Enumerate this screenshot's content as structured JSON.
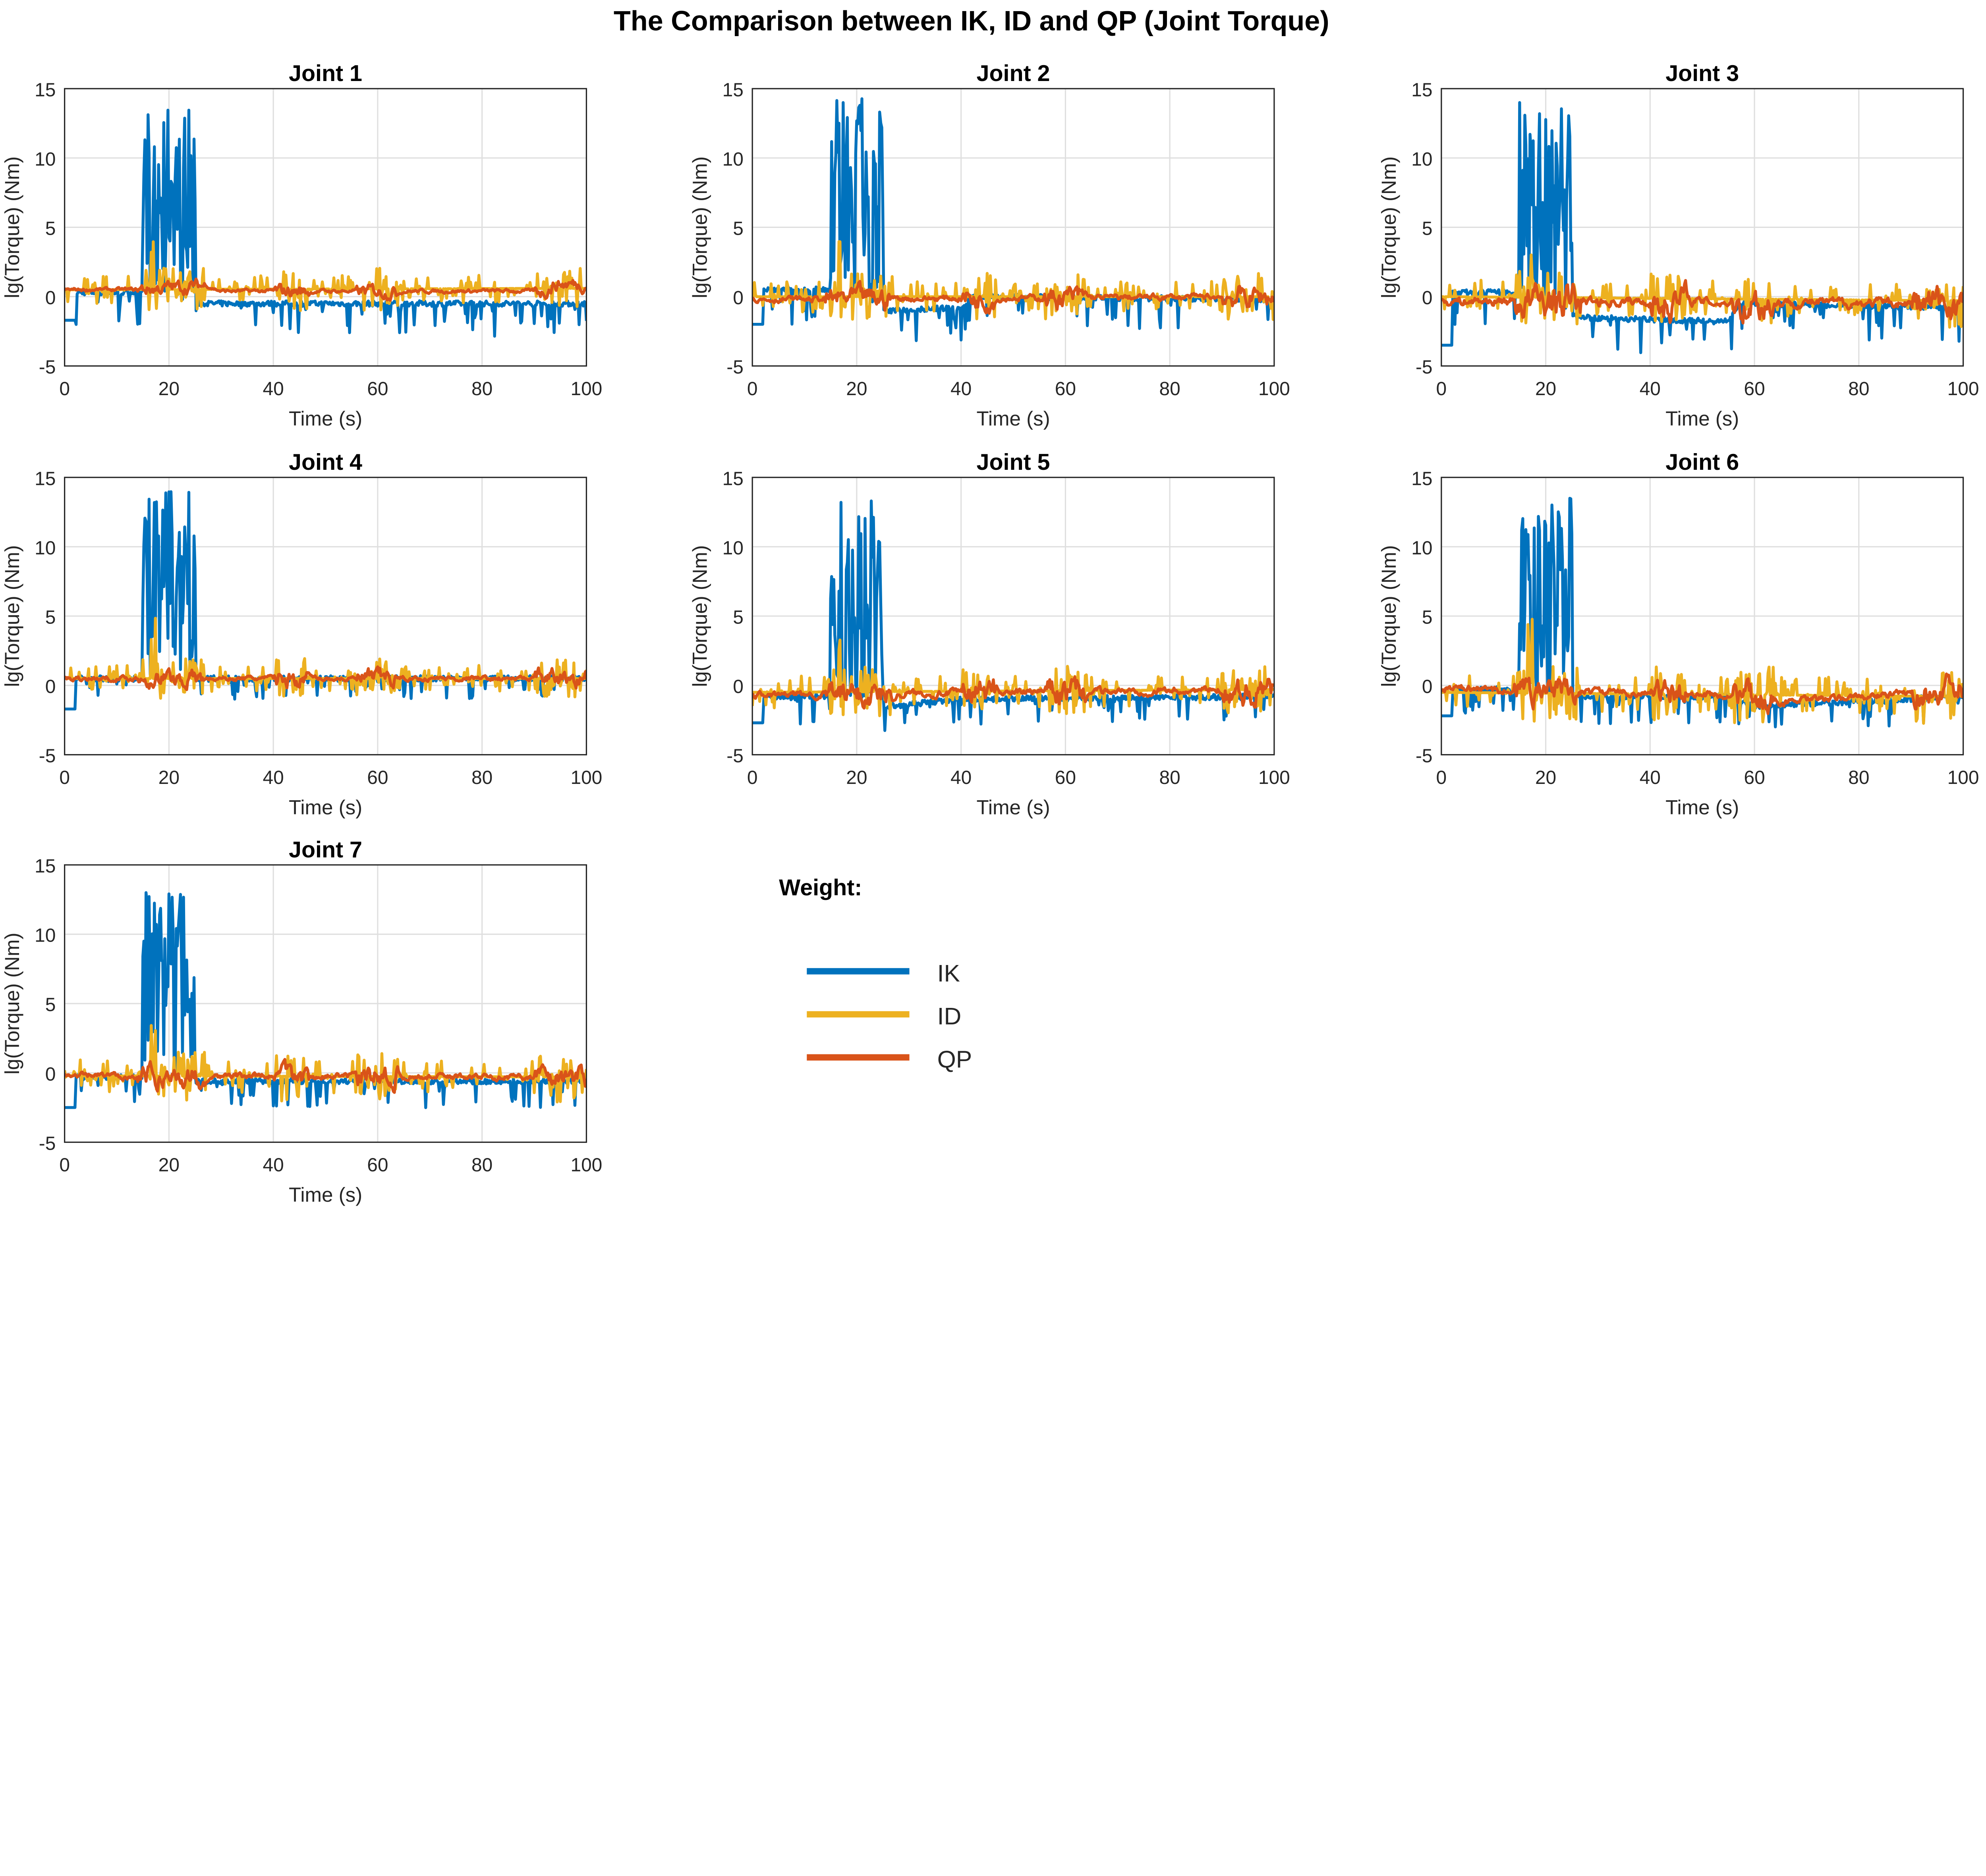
{
  "title": "The Comparison between IK, ID and QP (Joint Torque)",
  "legend": {
    "heading": "Weight:",
    "entries": [
      {
        "label": "IK",
        "color": "#0072BD"
      },
      {
        "label": "ID",
        "color": "#EDB120"
      },
      {
        "label": "QP",
        "color": "#D95319"
      }
    ]
  },
  "chart_data": [
    {
      "type": "line",
      "title": "Joint 1",
      "xlabel": "Time (s)",
      "ylabel": "lg(Torque) (Nm)",
      "xlim": [
        0,
        100
      ],
      "ylim": [
        -5,
        15
      ],
      "xticks": [
        0,
        20,
        40,
        60,
        80,
        100
      ],
      "yticks": [
        -5,
        0,
        5,
        10,
        15
      ],
      "grid": true,
      "series": [
        {
          "name": "IK",
          "levels": [
            [
              0,
              -1.7
            ],
            [
              2,
              -1.7
            ],
            [
              2.1,
              0.3
            ],
            [
              15,
              0.3
            ],
            [
              26,
              -0.5
            ],
            [
              100,
              -0.5
            ]
          ],
          "spike_max": 14.1,
          "dip": 2.5
        },
        {
          "name": "ID",
          "levels": [
            [
              0,
              0.5
            ],
            [
              100,
              0.6
            ]
          ],
          "noise": 1.3,
          "spike_max": 7
        },
        {
          "name": "QP",
          "levels": [
            [
              0,
              0.5
            ],
            [
              14,
              0.5
            ],
            [
              27,
              0.8
            ],
            [
              30,
              0.4
            ],
            [
              92,
              0.4
            ],
            [
              94,
              0.9
            ],
            [
              100,
              0.9
            ]
          ],
          "noise": 0.3
        }
      ]
    },
    {
      "type": "line",
      "title": "Joint 2",
      "xlabel": "Time (s)",
      "ylabel": "lg(Torque) (Nm)",
      "xlim": [
        0,
        100
      ],
      "ylim": [
        -5,
        15
      ],
      "xticks": [
        0,
        20,
        40,
        60,
        80,
        100
      ],
      "yticks": [
        -5,
        0,
        5,
        10,
        15
      ],
      "grid": true,
      "series": [
        {
          "name": "IK",
          "levels": [
            [
              0,
              -2
            ],
            [
              2,
              -2
            ],
            [
              2.1,
              0.5
            ],
            [
              15,
              0.5
            ],
            [
              26,
              -1
            ],
            [
              40,
              -0.8
            ],
            [
              42,
              0
            ],
            [
              100,
              -0.2
            ]
          ],
          "spike_max": 14.4,
          "dip": 2.5
        },
        {
          "name": "ID",
          "levels": [
            [
              0,
              0
            ],
            [
              100,
              0
            ]
          ],
          "noise": 1.4,
          "spike_max": 5
        },
        {
          "name": "QP",
          "levels": [
            [
              0,
              -0.2
            ],
            [
              100,
              0
            ]
          ],
          "noise": 0.5
        }
      ]
    },
    {
      "type": "line",
      "title": "Joint 3",
      "xlabel": "Time (s)",
      "ylabel": "lg(Torque) (Nm)",
      "xlim": [
        0,
        100
      ],
      "ylim": [
        -5,
        15
      ],
      "xticks": [
        0,
        20,
        40,
        60,
        80,
        100
      ],
      "yticks": [
        -5,
        0,
        5,
        10,
        15
      ],
      "grid": true,
      "series": [
        {
          "name": "IK",
          "levels": [
            [
              0,
              -3.5
            ],
            [
              2,
              -3.5
            ],
            [
              2.1,
              0.3
            ],
            [
              15,
              0.3
            ],
            [
              26,
              -1.5
            ],
            [
              55,
              -1.8
            ],
            [
              57,
              -0.5
            ],
            [
              100,
              -0.8
            ]
          ],
          "spike_max": 14,
          "dip": 2.5
        },
        {
          "name": "ID",
          "levels": [
            [
              0,
              0
            ],
            [
              100,
              -0.3
            ]
          ],
          "noise": 1.6,
          "spike_max": 5
        },
        {
          "name": "QP",
          "levels": [
            [
              0,
              -0.3
            ],
            [
              100,
              -0.5
            ]
          ],
          "noise": 0.8
        }
      ]
    },
    {
      "type": "line",
      "title": "Joint 4",
      "xlabel": "Time (s)",
      "ylabel": "lg(Torque) (Nm)",
      "xlim": [
        0,
        100
      ],
      "ylim": [
        -5,
        15
      ],
      "xticks": [
        0,
        20,
        40,
        60,
        80,
        100
      ],
      "yticks": [
        -5,
        0,
        5,
        10,
        15
      ],
      "grid": true,
      "series": [
        {
          "name": "IK",
          "levels": [
            [
              0,
              -1.7
            ],
            [
              2,
              -1.7
            ],
            [
              2.1,
              0.5
            ],
            [
              100,
              0.5
            ]
          ],
          "spike_max": 14,
          "dip": 1.5
        },
        {
          "name": "ID",
          "levels": [
            [
              0,
              0.5
            ],
            [
              100,
              0.5
            ]
          ],
          "noise": 1.2,
          "spike_max": 6
        },
        {
          "name": "QP",
          "levels": [
            [
              0,
              0.5
            ],
            [
              100,
              0.5
            ]
          ],
          "noise": 0.4
        }
      ]
    },
    {
      "type": "line",
      "title": "Joint 5",
      "xlabel": "Time (s)",
      "ylabel": "lg(Torque) (Nm)",
      "xlim": [
        0,
        100
      ],
      "ylim": [
        -5,
        15
      ],
      "xticks": [
        0,
        20,
        40,
        60,
        80,
        100
      ],
      "yticks": [
        -5,
        0,
        5,
        10,
        15
      ],
      "grid": true,
      "series": [
        {
          "name": "IK",
          "levels": [
            [
              0,
              -2.7
            ],
            [
              2,
              -2.7
            ],
            [
              2.1,
              -0.8
            ],
            [
              15,
              -0.8
            ],
            [
              26,
              -1.5
            ],
            [
              40,
              -1
            ],
            [
              100,
              -0.8
            ]
          ],
          "spike_max": 13.5,
          "dip": 2
        },
        {
          "name": "ID",
          "levels": [
            [
              0,
              -0.5
            ],
            [
              100,
              -0.3
            ]
          ],
          "noise": 1.5,
          "spike_max": 4
        },
        {
          "name": "QP",
          "levels": [
            [
              0,
              -0.7
            ],
            [
              100,
              -0.3
            ]
          ],
          "noise": 0.6
        }
      ]
    },
    {
      "type": "line",
      "title": "Joint 6",
      "xlabel": "Time (s)",
      "ylabel": "lg(Torque) (Nm)",
      "xlim": [
        0,
        100
      ],
      "ylim": [
        -5,
        15
      ],
      "xticks": [
        0,
        20,
        40,
        60,
        80,
        100
      ],
      "yticks": [
        -5,
        0,
        5,
        10,
        15
      ],
      "grid": true,
      "series": [
        {
          "name": "IK",
          "levels": [
            [
              0,
              -2.2
            ],
            [
              2,
              -2.2
            ],
            [
              2.1,
              -0.3
            ],
            [
              15,
              -0.3
            ],
            [
              26,
              -0.8
            ],
            [
              55,
              -0.8
            ],
            [
              60,
              -1.5
            ],
            [
              100,
              -0.8
            ]
          ],
          "spike_max": 13.6,
          "dip": 2
        },
        {
          "name": "ID",
          "levels": [
            [
              0,
              -0.5
            ],
            [
              100,
              -0.8
            ]
          ],
          "noise": 1.7,
          "spike_max": 5
        },
        {
          "name": "QP",
          "levels": [
            [
              0,
              -0.2
            ],
            [
              55,
              -0.7
            ],
            [
              65,
              -1.2
            ],
            [
              100,
              -0.3
            ]
          ],
          "noise": 0.6
        }
      ]
    },
    {
      "type": "line",
      "title": "Joint 7",
      "xlabel": "Time (s)",
      "ylabel": "lg(Torque) (Nm)",
      "xlim": [
        0,
        100
      ],
      "ylim": [
        -5,
        15
      ],
      "xticks": [
        0,
        20,
        40,
        60,
        80,
        100
      ],
      "yticks": [
        -5,
        0,
        5,
        10,
        15
      ],
      "grid": true,
      "series": [
        {
          "name": "IK",
          "levels": [
            [
              0,
              -2.5
            ],
            [
              2,
              -2.5
            ],
            [
              2.1,
              -0.3
            ],
            [
              15,
              -0.3
            ],
            [
              26,
              -0.6
            ],
            [
              100,
              -0.6
            ]
          ],
          "spike_max": 13.3,
          "dip": 2
        },
        {
          "name": "ID",
          "levels": [
            [
              0,
              -0.2
            ],
            [
              100,
              -0.3
            ]
          ],
          "noise": 1.5,
          "spike_max": 5
        },
        {
          "name": "QP",
          "levels": [
            [
              0,
              -0.2
            ],
            [
              100,
              -0.3
            ]
          ],
          "noise": 0.5
        }
      ]
    }
  ]
}
